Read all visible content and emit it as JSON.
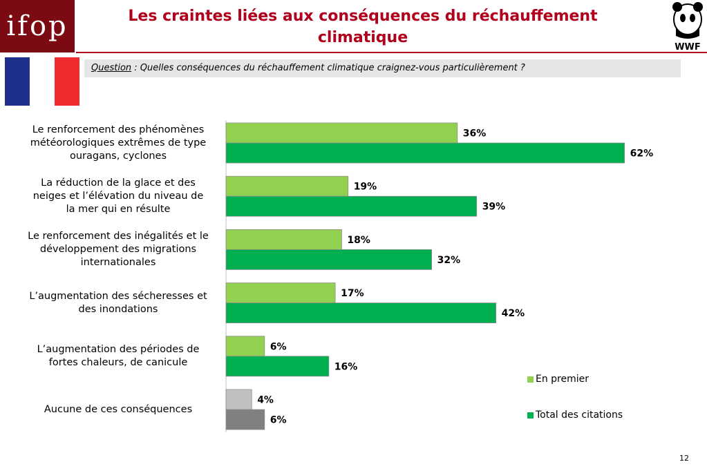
{
  "header": {
    "logo_text": "ifop",
    "title_line1": "Les craintes liées aux conséquences du réchauffement",
    "title_line2": "climatique",
    "wwf_text": "WWF",
    "title_color": "#b0001c"
  },
  "question": {
    "label": "Question",
    "text": " : Quelles conséquences du réchauffement climatique craignez-vous particulièrement ?"
  },
  "chart_data": {
    "type": "bar",
    "orientation": "horizontal",
    "categories": [
      [
        "Le renforcement des phénomènes",
        "météorologiques extrêmes de type",
        "ouragans, cyclones"
      ],
      [
        "La réduction de la glace et des",
        "neiges et l’élévation du niveau de",
        "la mer qui en résulte"
      ],
      [
        "Le renforcement des inégalités et le",
        "développement des migrations",
        "internationales"
      ],
      [
        "L’augmentation des sécheresses et",
        "des inondations"
      ],
      [
        "L’augmentation des périodes de",
        "fortes chaleurs, de canicule"
      ],
      [
        "Aucune de ces conséquences"
      ]
    ],
    "series": [
      {
        "name": "En premier",
        "values": [
          36,
          19,
          18,
          17,
          6,
          4
        ],
        "labels": [
          "36%",
          "19%",
          "18%",
          "17%",
          "6%",
          "4%"
        ],
        "color": "#92d050",
        "last_color": "#c0c0c0"
      },
      {
        "name": "Total des citations",
        "values": [
          62,
          39,
          32,
          42,
          16,
          6
        ],
        "labels": [
          "62%",
          "39%",
          "32%",
          "42%",
          "16%",
          "6%"
        ],
        "color": "#00b050",
        "last_color": "#808080"
      }
    ],
    "legend_position": "right",
    "grid": false
  },
  "footer": {
    "page_number": "12"
  }
}
